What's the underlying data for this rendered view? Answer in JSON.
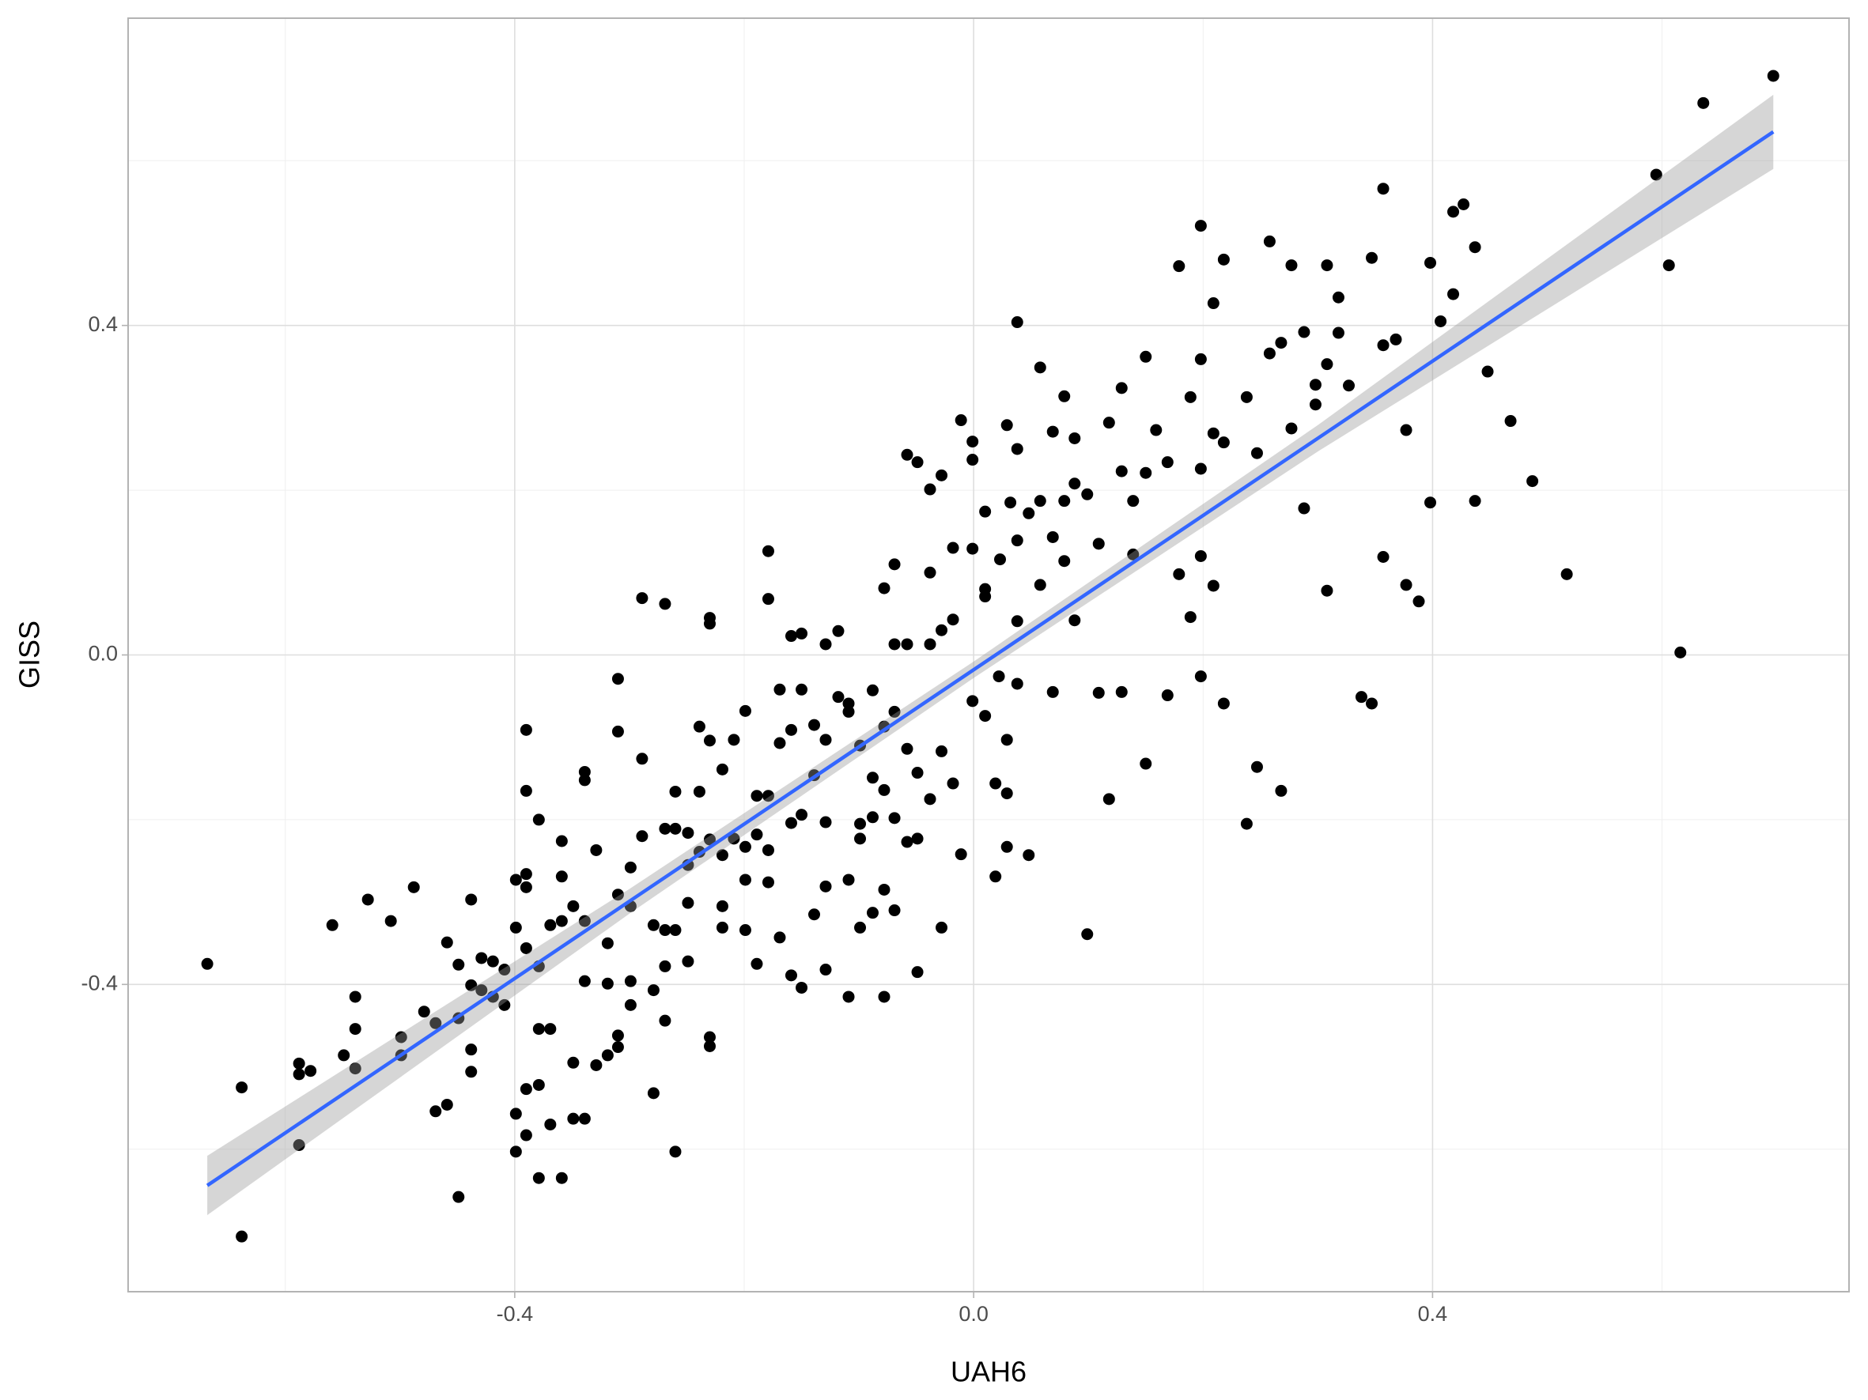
{
  "chart_data": {
    "type": "scatter",
    "xlabel": "UAH6",
    "ylabel": "GISS",
    "color": "#000000",
    "xlim": [
      -0.737,
      0.763
    ],
    "ylim": [
      -0.773,
      0.773
    ],
    "xticks": [
      -0.4,
      {
        "value": 0,
        "label": "0.0"
      },
      0.4
    ],
    "yticks": [
      -0.4,
      {
        "value": 0,
        "label": "0.0"
      },
      0.4
    ],
    "xminor": [
      -0.6,
      -0.2,
      0.2,
      0.6
    ],
    "yminor": [
      -0.6,
      -0.2,
      0.2,
      0.6
    ],
    "grid": true,
    "x": [
      -0.668,
      -0.638,
      -0.638,
      -0.588,
      -0.588,
      -0.588,
      -0.578,
      -0.559,
      -0.549,
      -0.539,
      -0.539,
      -0.539,
      -0.528,
      -0.508,
      -0.499,
      -0.499,
      -0.488,
      -0.479,
      -0.469,
      -0.469,
      -0.459,
      -0.459,
      -0.449,
      -0.449,
      -0.449,
      -0.438,
      -0.438,
      -0.438,
      -0.438,
      -0.429,
      -0.429,
      -0.419,
      -0.419,
      -0.409,
      -0.409,
      -0.399,
      -0.399,
      -0.399,
      -0.399,
      -0.39,
      -0.39,
      -0.39,
      -0.39,
      -0.39,
      -0.39,
      -0.39,
      -0.379,
      -0.379,
      -0.379,
      -0.379,
      -0.379,
      -0.369,
      -0.369,
      -0.369,
      -0.359,
      -0.359,
      -0.359,
      -0.359,
      -0.349,
      -0.349,
      -0.349,
      -0.339,
      -0.339,
      -0.339,
      -0.339,
      -0.339,
      -0.329,
      -0.329,
      -0.319,
      -0.319,
      -0.319,
      -0.31,
      -0.31,
      -0.31,
      -0.31,
      -0.31,
      -0.299,
      -0.299,
      -0.299,
      -0.299,
      -0.289,
      -0.289,
      -0.289,
      -0.279,
      -0.279,
      -0.279,
      -0.269,
      -0.269,
      -0.269,
      -0.269,
      -0.269,
      -0.26,
      -0.26,
      -0.26,
      -0.26,
      -0.249,
      -0.249,
      -0.249,
      -0.249,
      -0.239,
      -0.239,
      -0.239,
      -0.23,
      -0.23,
      -0.23,
      -0.23,
      -0.23,
      -0.23,
      -0.219,
      -0.219,
      -0.219,
      -0.219,
      -0.209,
      -0.209,
      -0.199,
      -0.199,
      -0.199,
      -0.199,
      -0.189,
      -0.189,
      -0.189,
      -0.179,
      -0.179,
      -0.179,
      -0.179,
      -0.179,
      -0.169,
      -0.169,
      -0.169,
      -0.159,
      -0.159,
      -0.159,
      -0.159,
      -0.15,
      -0.15,
      -0.15,
      -0.15,
      -0.139,
      -0.139,
      -0.139,
      -0.129,
      -0.129,
      -0.129,
      -0.129,
      -0.129,
      -0.118,
      -0.118,
      -0.109,
      -0.109,
      -0.109,
      -0.109,
      -0.099,
      -0.099,
      -0.099,
      -0.099,
      -0.088,
      -0.088,
      -0.088,
      -0.088,
      -0.078,
      -0.078,
      -0.078,
      -0.078,
      -0.078,
      -0.069,
      -0.069,
      -0.069,
      -0.069,
      -0.069,
      -0.058,
      -0.058,
      -0.058,
      -0.058,
      -0.049,
      -0.049,
      -0.049,
      -0.049,
      -0.038,
      -0.038,
      -0.038,
      -0.038,
      -0.028,
      -0.028,
      -0.028,
      -0.028,
      -0.018,
      -0.018,
      -0.018,
      -0.011,
      -0.011,
      -0.001,
      -0.001,
      -0.001,
      -0.001,
      0.01,
      0.01,
      0.01,
      0.01,
      0.019,
      0.019,
      0.022,
      0.023,
      0.029,
      0.029,
      0.029,
      0.029,
      0.032,
      0.038,
      0.038,
      0.038,
      0.038,
      0.038,
      0.048,
      0.048,
      0.058,
      0.058,
      0.058,
      0.069,
      0.069,
      0.069,
      0.079,
      0.079,
      0.079,
      0.088,
      0.088,
      0.088,
      0.099,
      0.099,
      0.109,
      0.109,
      0.118,
      0.118,
      0.129,
      0.129,
      0.129,
      0.139,
      0.139,
      0.15,
      0.15,
      0.15,
      0.159,
      0.169,
      0.169,
      0.179,
      0.179,
      0.189,
      0.189,
      0.198,
      0.198,
      0.198,
      0.198,
      0.198,
      0.209,
      0.209,
      0.209,
      0.218,
      0.218,
      0.218,
      0.238,
      0.238,
      0.247,
      0.247,
      0.258,
      0.258,
      0.268,
      0.268,
      0.277,
      0.277,
      0.288,
      0.288,
      0.298,
      0.298,
      0.308,
      0.308,
      0.308,
      0.318,
      0.318,
      0.327,
      0.338,
      0.347,
      0.347,
      0.357,
      0.357,
      0.357,
      0.368,
      0.377,
      0.377,
      0.388,
      0.398,
      0.398,
      0.407,
      0.418,
      0.418,
      0.427,
      0.437,
      0.437,
      0.448,
      0.468,
      0.487,
      0.517,
      0.595,
      0.606,
      0.616,
      0.636,
      0.697
    ],
    "y": [
      -0.375,
      -0.525,
      -0.706,
      -0.496,
      -0.509,
      -0.595,
      -0.505,
      -0.328,
      -0.486,
      -0.415,
      -0.454,
      -0.502,
      -0.297,
      -0.323,
      -0.464,
      -0.486,
      -0.282,
      -0.433,
      -0.447,
      -0.554,
      -0.349,
      -0.546,
      -0.376,
      -0.441,
      -0.658,
      -0.297,
      -0.401,
      -0.479,
      -0.506,
      -0.368,
      -0.407,
      -0.372,
      -0.415,
      -0.382,
      -0.425,
      -0.273,
      -0.331,
      -0.557,
      -0.603,
      -0.266,
      -0.282,
      -0.356,
      -0.527,
      -0.583,
      -0.091,
      -0.165,
      -0.2,
      -0.378,
      -0.454,
      -0.522,
      -0.635,
      -0.328,
      -0.454,
      -0.57,
      -0.226,
      -0.269,
      -0.323,
      -0.635,
      -0.305,
      -0.495,
      -0.563,
      -0.142,
      -0.152,
      -0.323,
      -0.396,
      -0.563,
      -0.237,
      -0.498,
      -0.399,
      -0.35,
      -0.486,
      -0.029,
      -0.093,
      -0.291,
      -0.462,
      -0.476,
      -0.258,
      -0.305,
      -0.425,
      -0.396,
      -0.126,
      -0.22,
      0.069,
      -0.328,
      -0.407,
      -0.532,
      0.062,
      -0.211,
      -0.334,
      -0.378,
      -0.444,
      -0.166,
      -0.211,
      -0.603,
      -0.334,
      -0.216,
      -0.372,
      -0.255,
      -0.301,
      -0.087,
      -0.239,
      -0.166,
      0.045,
      0.038,
      -0.104,
      -0.224,
      -0.475,
      -0.464,
      -0.139,
      -0.243,
      -0.305,
      -0.331,
      -0.103,
      -0.223,
      -0.068,
      -0.233,
      -0.273,
      -0.334,
      -0.171,
      -0.218,
      -0.375,
      0.126,
      0.068,
      -0.171,
      -0.276,
      -0.237,
      -0.042,
      -0.107,
      -0.343,
      0.023,
      -0.091,
      -0.204,
      -0.389,
      0.026,
      -0.042,
      -0.194,
      -0.404,
      -0.085,
      -0.146,
      -0.315,
      0.013,
      -0.103,
      -0.203,
      -0.281,
      -0.382,
      0.029,
      -0.051,
      -0.069,
      -0.273,
      -0.415,
      -0.059,
      -0.11,
      -0.205,
      -0.223,
      -0.331,
      -0.043,
      -0.149,
      -0.197,
      -0.313,
      0.081,
      -0.087,
      -0.164,
      -0.285,
      -0.415,
      0.11,
      0.013,
      -0.069,
      -0.198,
      -0.31,
      0.243,
      0.013,
      -0.114,
      -0.227,
      0.234,
      -0.143,
      -0.223,
      -0.385,
      0.201,
      0.1,
      0.013,
      -0.175,
      0.218,
      0.03,
      -0.117,
      -0.331,
      0.13,
      0.043,
      -0.156,
      0.285,
      -0.242,
      0.259,
      0.237,
      0.129,
      -0.056,
      -0.074,
      0.08,
      0.174,
      0.071,
      -0.269,
      -0.156,
      -0.026,
      0.116,
      0.279,
      -0.103,
      -0.168,
      -0.233,
      0.185,
      0.25,
      0.139,
      -0.035,
      0.041,
      0.404,
      0.172,
      -0.243,
      0.349,
      0.187,
      0.085,
      0.271,
      0.143,
      -0.045,
      0.314,
      0.187,
      0.114,
      0.263,
      0.208,
      0.042,
      0.195,
      -0.339,
      0.135,
      -0.046,
      0.282,
      -0.175,
      0.324,
      0.223,
      -0.045,
      0.122,
      0.187,
      0.362,
      0.221,
      -0.132,
      0.273,
      0.234,
      -0.049,
      0.472,
      0.098,
      0.313,
      0.046,
      0.521,
      0.359,
      0.226,
      0.12,
      -0.026,
      0.427,
      0.269,
      0.084,
      0.48,
      0.258,
      -0.059,
      0.313,
      -0.205,
      0.245,
      -0.136,
      0.502,
      0.366,
      0.379,
      -0.165,
      0.473,
      0.275,
      0.392,
      0.178,
      0.328,
      0.304,
      0.473,
      0.353,
      0.078,
      0.434,
      0.391,
      0.327,
      -0.051,
      0.482,
      -0.059,
      0.566,
      0.376,
      0.119,
      0.383,
      0.273,
      0.085,
      0.065,
      0.476,
      0.185,
      0.405,
      0.538,
      0.438,
      0.547,
      0.495,
      0.187,
      0.344,
      0.284,
      0.211,
      0.098,
      0.583,
      0.473,
      0.003,
      0.67,
      0.703
    ],
    "fit": {
      "color": "#3366ff",
      "band_color": "#999999",
      "x": [
        -0.668,
        -0.3,
        0,
        0.3,
        0.697
      ],
      "y": [
        -0.644,
        -0.299,
        -0.018,
        0.263,
        0.635
      ],
      "lower": [
        -0.68,
        -0.314,
        -0.028,
        0.247,
        0.59
      ],
      "upper": [
        -0.608,
        -0.284,
        -0.008,
        0.279,
        0.68
      ]
    }
  }
}
